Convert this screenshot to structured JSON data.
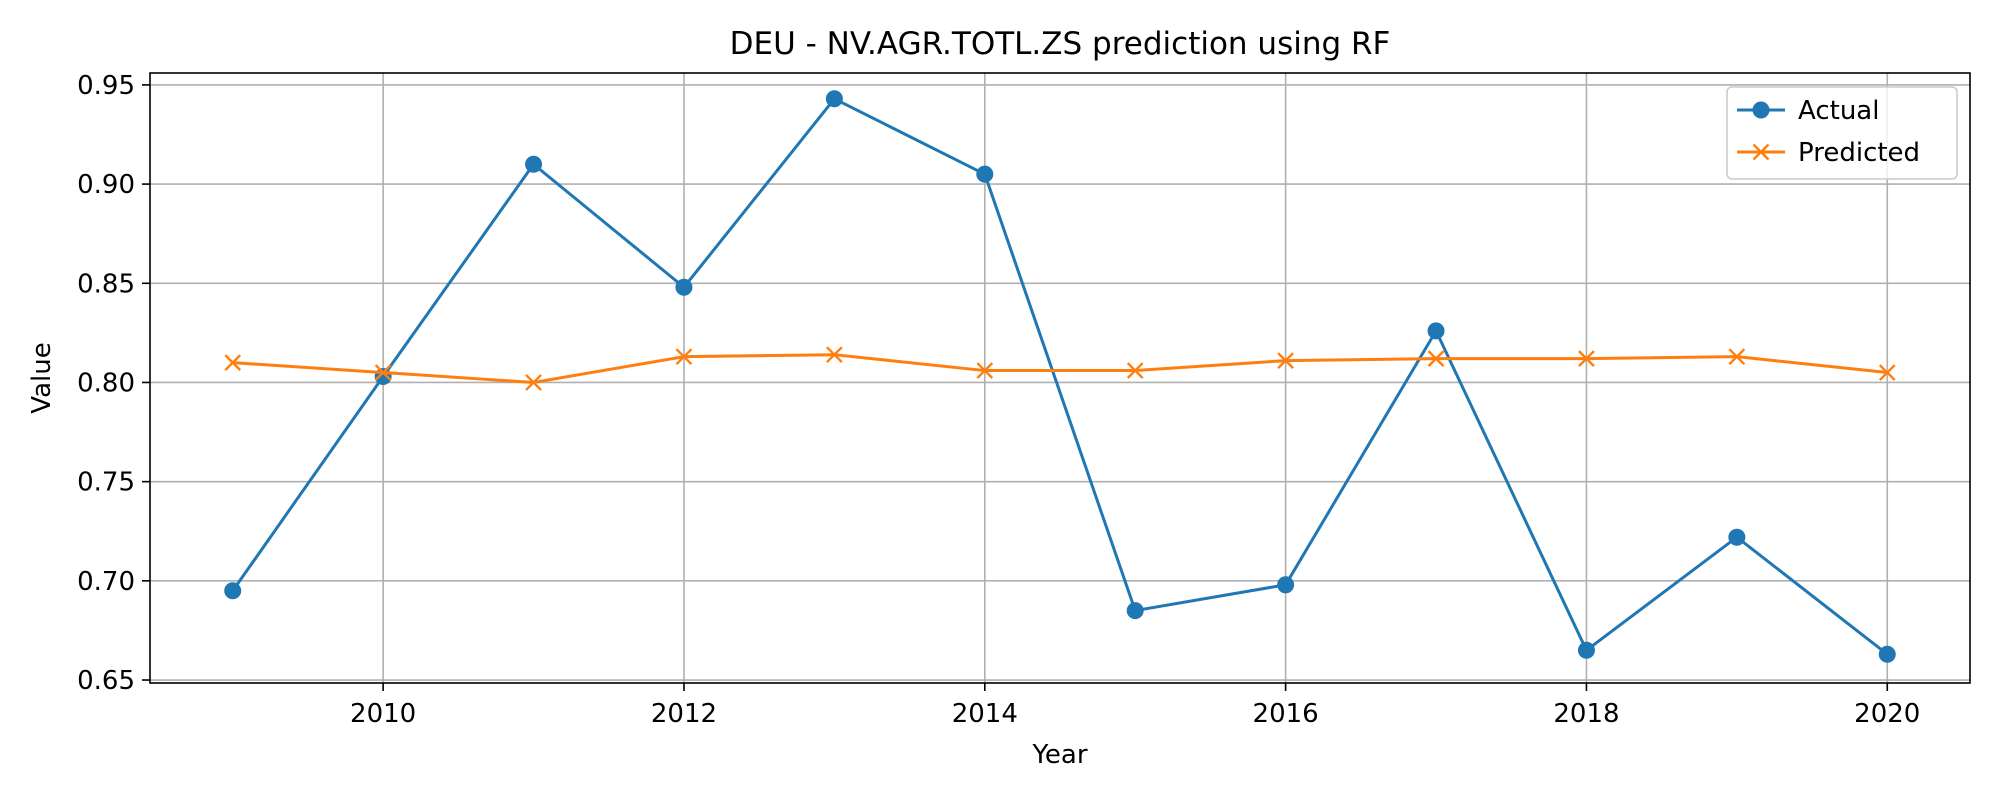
{
  "chart_data": {
    "type": "line",
    "title": "DEU - NV.AGR.TOTL.ZS prediction using RF",
    "xlabel": "Year",
    "ylabel": "Value",
    "x": [
      2009,
      2010,
      2011,
      2012,
      2013,
      2014,
      2015,
      2016,
      2017,
      2018,
      2019,
      2020
    ],
    "xlim": [
      2008.45,
      2020.55
    ],
    "ylim": [
      0.6485,
      0.956
    ],
    "xticks": [
      "2010",
      "2012",
      "2014",
      "2016",
      "2018",
      "2020"
    ],
    "yticks": [
      "0.65",
      "0.70",
      "0.75",
      "0.80",
      "0.85",
      "0.90",
      "0.95"
    ],
    "grid": true,
    "legend_position": "top-right",
    "series": [
      {
        "name": "Actual",
        "color": "#1f77b4",
        "marker": "circle",
        "values": [
          0.695,
          0.803,
          0.91,
          0.848,
          0.943,
          0.905,
          0.685,
          0.698,
          0.826,
          0.665,
          0.722,
          0.663
        ]
      },
      {
        "name": "Predicted",
        "color": "#ff7f0e",
        "marker": "x",
        "values": [
          0.81,
          0.805,
          0.8,
          0.813,
          0.814,
          0.806,
          0.806,
          0.811,
          0.812,
          0.812,
          0.813,
          0.805
        ]
      }
    ]
  }
}
